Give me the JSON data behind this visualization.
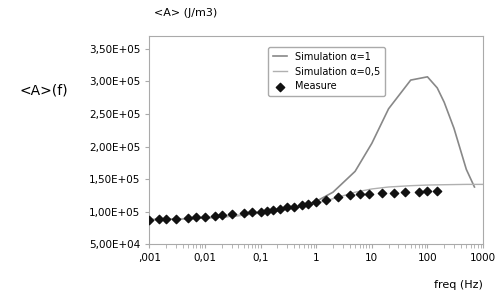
{
  "title_left": "<A>(f)",
  "ylabel": "<A> (J/m3)",
  "xlabel": "freq (Hz)",
  "xlim": [
    0.001,
    1000
  ],
  "ylim": [
    50000,
    370000
  ],
  "yticks": [
    50000,
    100000,
    150000,
    200000,
    250000,
    300000,
    350000
  ],
  "ytick_labels": [
    "5,00E+04",
    "1,00E+05",
    "1,50E+05",
    "2,00E+05",
    "2,50E+05",
    "3,00E+05",
    "3,50E+05"
  ],
  "xtick_labels": [
    ",001",
    "0,01",
    "0,1",
    "1",
    "10",
    "100",
    "1000"
  ],
  "xtick_values": [
    0.001,
    0.01,
    0.1,
    1,
    10,
    100,
    1000
  ],
  "legend_labels": [
    "Simulation α=1",
    "Simulation α=0,5",
    "Measure"
  ],
  "line_color_alpha1": "#888888",
  "line_color_alpha05": "#b0b0b0",
  "measure_color": "#111111",
  "background_color": "#ffffff",
  "measure_x": [
    0.001,
    0.0015,
    0.002,
    0.003,
    0.005,
    0.007,
    0.01,
    0.015,
    0.02,
    0.03,
    0.05,
    0.07,
    0.1,
    0.13,
    0.17,
    0.22,
    0.3,
    0.4,
    0.55,
    0.7,
    1.0,
    1.5,
    2.5,
    4.0,
    6.0,
    9.0,
    15,
    25,
    40,
    70,
    100,
    150
  ],
  "measure_y": [
    88000,
    89000,
    89500,
    89500,
    91000,
    91500,
    92500,
    94000,
    95000,
    96000,
    98000,
    99000,
    100000,
    101000,
    103000,
    105000,
    107000,
    108000,
    110000,
    112000,
    115000,
    118000,
    122000,
    126000,
    128000,
    128000,
    128500,
    129000,
    130000,
    131000,
    131500,
    132000
  ],
  "sim_alpha1_x": [
    0.001,
    0.002,
    0.005,
    0.01,
    0.02,
    0.05,
    0.1,
    0.2,
    0.5,
    1.0,
    2.0,
    5.0,
    10.0,
    20.0,
    50.0,
    100.0,
    150.0,
    200.0,
    300.0,
    500.0,
    700.0
  ],
  "sim_alpha1_y": [
    88000,
    88500,
    89500,
    90500,
    92000,
    95000,
    98500,
    102000,
    108000,
    116000,
    130000,
    162000,
    205000,
    258000,
    302000,
    307000,
    290000,
    268000,
    228000,
    165000,
    138000
  ],
  "sim_alpha05_x": [
    0.001,
    0.002,
    0.005,
    0.01,
    0.02,
    0.05,
    0.1,
    0.2,
    0.5,
    1.0,
    2.0,
    5.0,
    10.0,
    20.0,
    50.0,
    100.0,
    200.0,
    500.0,
    1000.0
  ],
  "sim_alpha05_y": [
    88000,
    88500,
    89500,
    90500,
    92000,
    95000,
    98000,
    101000,
    107000,
    113000,
    120000,
    130000,
    135000,
    138000,
    140000,
    141000,
    141500,
    142000,
    142000
  ]
}
